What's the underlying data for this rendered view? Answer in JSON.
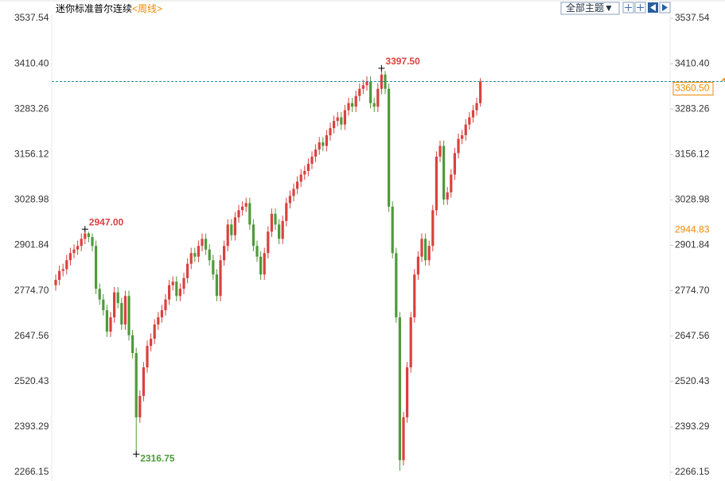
{
  "header": {
    "title": "迷你标准普尔连续",
    "period": "<周线>",
    "theme_button": "全部主题▼"
  },
  "chart_data": {
    "type": "candlestick",
    "open": [
      2790,
      2805,
      2830,
      2835,
      2860,
      2880,
      2890,
      2900,
      2920,
      2935,
      2925,
      2900,
      2780,
      2750,
      2720,
      2660,
      2700,
      2770,
      2740,
      2680,
      2760,
      2650,
      2600,
      2420,
      2480,
      2560,
      2620,
      2640,
      2680,
      2700,
      2720,
      2750,
      2790,
      2800,
      2760,
      2780,
      2810,
      2850,
      2880,
      2870,
      2900,
      2920,
      2890,
      2860,
      2820,
      2760,
      2860,
      2900,
      2960,
      2930,
      2980,
      3000,
      3010,
      3020,
      2960,
      2900,
      2870,
      2820,
      2880,
      2940,
      2990,
      2960,
      2920,
      2970,
      3020,
      3040,
      3060,
      3080,
      3100,
      3110,
      3130,
      3150,
      3170,
      3190,
      3180,
      3210,
      3230,
      3250,
      3260,
      3240,
      3280,
      3300,
      3290,
      3320,
      3340,
      3350,
      3360,
      3300,
      3290,
      3340,
      3380,
      3340,
      3010,
      2880,
      2700,
      2300,
      2420,
      2560,
      2700,
      2820,
      2870,
      2920,
      2860,
      2900,
      3000,
      3150,
      3180,
      3030,
      3050,
      3100,
      3160,
      3200,
      3210,
      3240,
      3260,
      3280,
      3300
    ],
    "high": [
      2820,
      2845,
      2850,
      2875,
      2895,
      2905,
      2915,
      2935,
      2947,
      2940,
      2935,
      2915,
      2795,
      2765,
      2735,
      2715,
      2785,
      2785,
      2755,
      2775,
      2775,
      2665,
      2615,
      2495,
      2575,
      2635,
      2655,
      2695,
      2715,
      2735,
      2765,
      2805,
      2815,
      2815,
      2795,
      2825,
      2865,
      2895,
      2895,
      2915,
      2935,
      2935,
      2905,
      2875,
      2835,
      2875,
      2915,
      2975,
      2975,
      2995,
      3015,
      3025,
      3035,
      3035,
      2975,
      2915,
      2885,
      2895,
      2955,
      3005,
      3005,
      2975,
      2985,
      3035,
      3055,
      3075,
      3095,
      3115,
      3125,
      3145,
      3165,
      3185,
      3205,
      3205,
      3225,
      3245,
      3265,
      3275,
      3275,
      3295,
      3315,
      3315,
      3335,
      3355,
      3365,
      3375,
      3375,
      3315,
      3355,
      3397.5,
      3390,
      3355,
      3025,
      2895,
      2715,
      2435,
      2575,
      2715,
      2835,
      2885,
      2935,
      2935,
      2915,
      3015,
      3165,
      3195,
      3195,
      3065,
      3115,
      3175,
      3215,
      3225,
      3255,
      3275,
      3295,
      3315,
      3370
    ],
    "low": [
      2775,
      2790,
      2815,
      2820,
      2845,
      2865,
      2875,
      2885,
      2905,
      2910,
      2885,
      2765,
      2735,
      2705,
      2645,
      2645,
      2685,
      2725,
      2665,
      2665,
      2635,
      2585,
      2316.75,
      2405,
      2465,
      2545,
      2605,
      2625,
      2665,
      2685,
      2705,
      2735,
      2775,
      2745,
      2745,
      2765,
      2795,
      2835,
      2855,
      2855,
      2885,
      2875,
      2845,
      2805,
      2745,
      2745,
      2845,
      2885,
      2915,
      2915,
      2965,
      2985,
      2995,
      2945,
      2885,
      2855,
      2805,
      2805,
      2865,
      2925,
      2945,
      2905,
      2905,
      2955,
      3005,
      3025,
      3045,
      3065,
      3085,
      3095,
      3115,
      3135,
      3155,
      3165,
      3165,
      3195,
      3215,
      3235,
      3225,
      3225,
      3265,
      3275,
      3275,
      3305,
      3325,
      3335,
      3285,
      3275,
      3275,
      3325,
      3325,
      2995,
      2865,
      2685,
      2270,
      2285,
      2405,
      2545,
      2685,
      2805,
      2855,
      2845,
      2845,
      2885,
      2985,
      3135,
      3015,
      3015,
      3035,
      3085,
      3145,
      3185,
      3195,
      3225,
      3245,
      3265,
      3290
    ],
    "close": [
      2805,
      2830,
      2835,
      2860,
      2880,
      2890,
      2900,
      2920,
      2935,
      2925,
      2900,
      2780,
      2750,
      2720,
      2660,
      2700,
      2770,
      2740,
      2680,
      2760,
      2650,
      2600,
      2420,
      2480,
      2560,
      2620,
      2640,
      2680,
      2700,
      2720,
      2750,
      2790,
      2800,
      2760,
      2780,
      2810,
      2850,
      2880,
      2870,
      2900,
      2920,
      2890,
      2860,
      2820,
      2760,
      2860,
      2900,
      2960,
      2930,
      2980,
      3000,
      3010,
      3020,
      2960,
      2900,
      2870,
      2820,
      2880,
      2940,
      2990,
      2960,
      2920,
      2970,
      3020,
      3040,
      3060,
      3080,
      3100,
      3110,
      3130,
      3150,
      3170,
      3190,
      3180,
      3210,
      3230,
      3250,
      3260,
      3240,
      3280,
      3300,
      3290,
      3320,
      3340,
      3350,
      3360,
      3300,
      3290,
      3340,
      3380,
      3340,
      3010,
      2880,
      2700,
      2300,
      2420,
      2560,
      2700,
      2820,
      2870,
      2920,
      2860,
      2900,
      3000,
      3150,
      3180,
      3030,
      3050,
      3100,
      3160,
      3200,
      3210,
      3240,
      3260,
      3280,
      3300,
      3360.5
    ],
    "up_color": "#d9423e",
    "down_color": "#4f9a3b",
    "ylim": [
      2266.15,
      3537.54
    ],
    "yticks": [
      2266.15,
      2393.29,
      2520.43,
      2647.56,
      {
        "value": 2774.7,
        "label": "2774.70"
      },
      2901.84,
      3028.98,
      3156.12,
      3283.26,
      {
        "value": 3410.4,
        "label": "3410.40"
      },
      3537.54
    ],
    "annotations": [
      {
        "value": 2947,
        "label": "2947.00",
        "color": "#d9423e"
      },
      {
        "value": 3397.5,
        "label": "3397.50",
        "color": "#d9423e"
      },
      {
        "value": 2316.75,
        "label": "2316.75",
        "color": "#4f9a3b"
      }
    ],
    "last_price": {
      "value": 3360.5,
      "label": "3360.50",
      "color": "#f08a00"
    },
    "price_markers": [
      2944.83
    ]
  }
}
